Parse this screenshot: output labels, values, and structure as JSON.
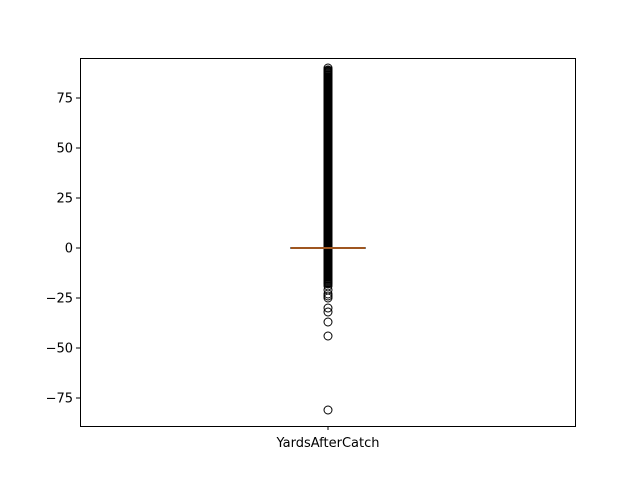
{
  "chart_data": {
    "type": "box",
    "title": "",
    "xlabel": "",
    "ylabel": "",
    "categories": [
      "YardsAfterCatch"
    ],
    "ylim": [
      -89,
      95
    ],
    "yticks": [
      -75,
      -50,
      -25,
      0,
      25,
      50,
      75
    ],
    "grid": false,
    "legend": "none",
    "colors": {
      "box": "#000000",
      "median": "#d4722a",
      "flier": "#000000"
    },
    "boxes": [
      {
        "label": "YardsAfterCatch",
        "q1": 0,
        "median": 0,
        "q3": 0,
        "whisker_low": 0,
        "whisker_high": 0,
        "fliers_continuous_range": [
          -18,
          89
        ],
        "fliers": [
          90,
          89,
          88,
          -19,
          -21,
          -23,
          -24,
          -25,
          -30,
          -32,
          -37,
          -44,
          -81
        ]
      }
    ]
  }
}
